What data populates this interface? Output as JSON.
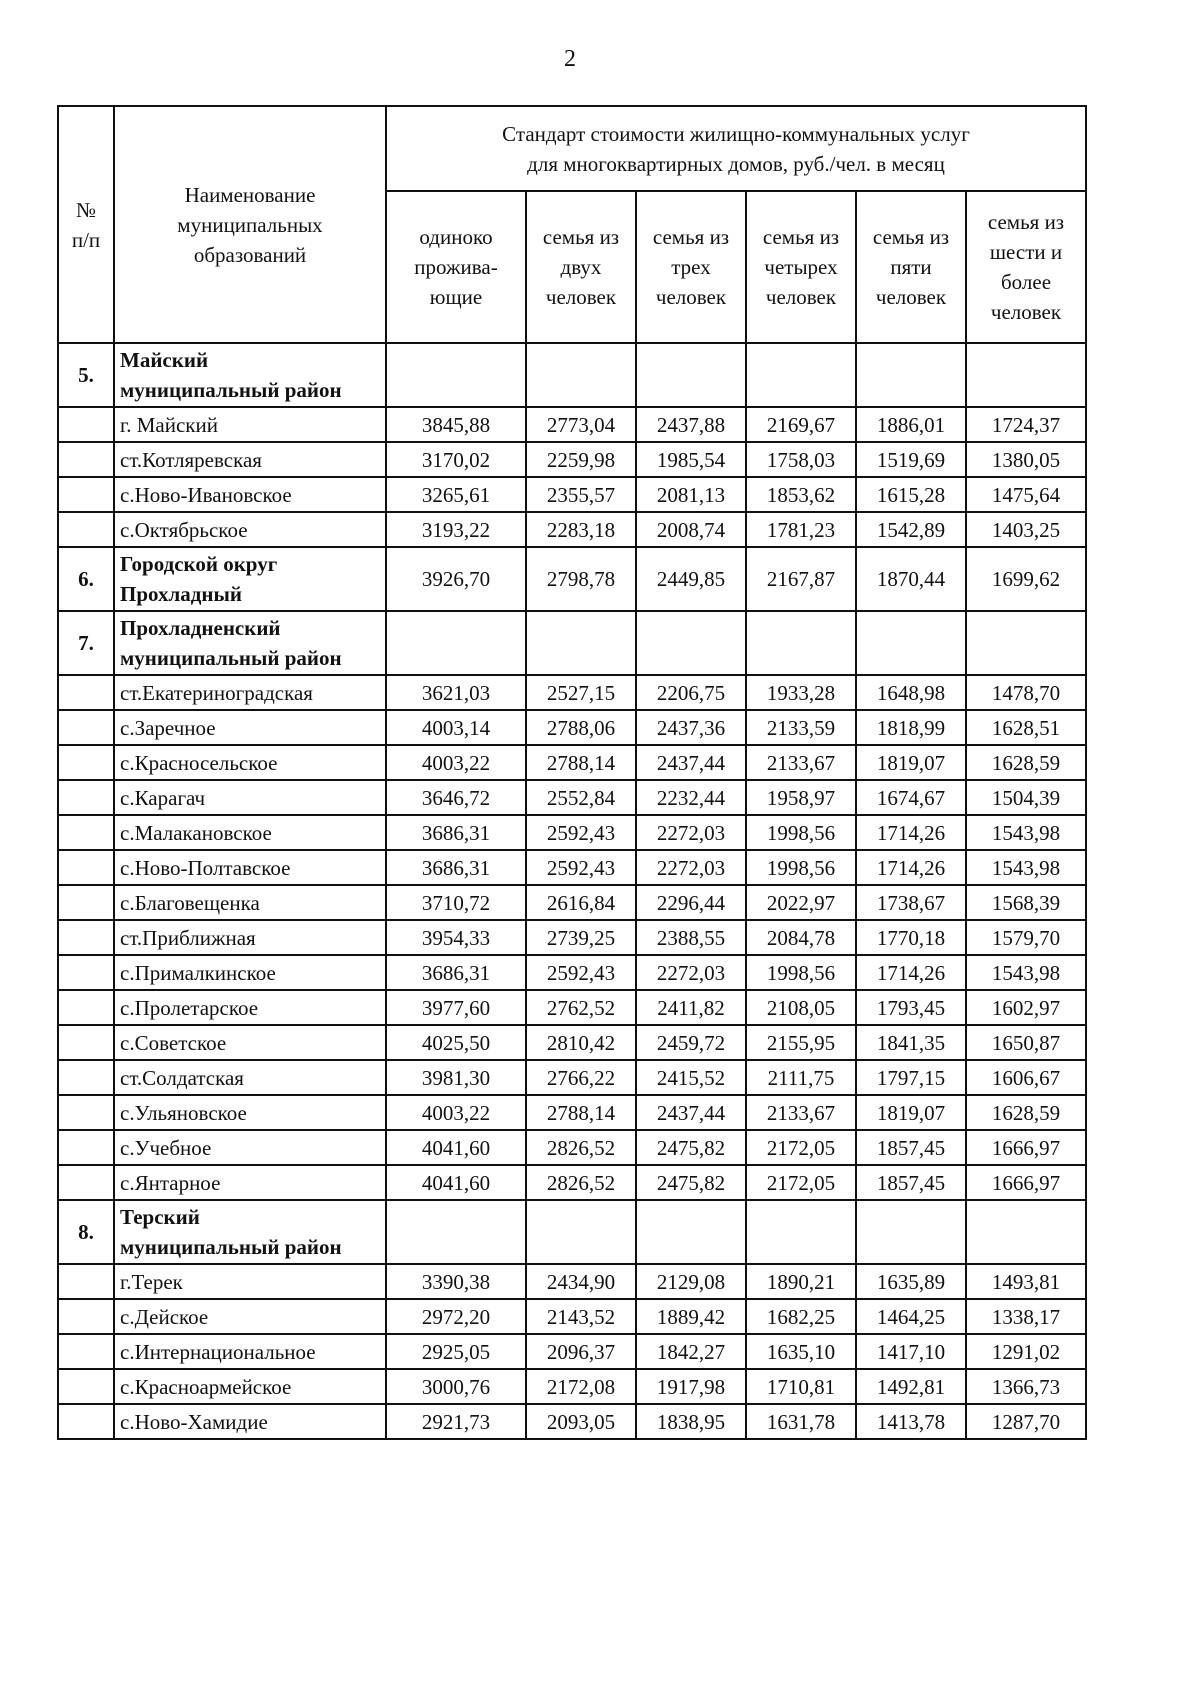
{
  "page_number": "2",
  "table": {
    "header": {
      "number": "№\nп/п",
      "name": "Наименование\nмуниципальных\nобразований",
      "group": "Стандарт стоимости жилищно-коммунальных услуг\nдля многоквартирных домов, руб./чел. в месяц",
      "columns": [
        "одиноко\nпрожива-\nющие",
        "семья из\nдвух\nчеловек",
        "семья из\nтрех\nчеловек",
        "семья из\nчетырех\nчеловек",
        "семья из\nпяти\nчеловек",
        "семья из\nшести и\nболее\nчеловек"
      ]
    },
    "rows": [
      {
        "number": "5.",
        "name": "Майский\nмуниципальный район",
        "values": []
      },
      {
        "name": "г. Майский",
        "values": [
          "3845,88",
          "2773,04",
          "2437,88",
          "2169,67",
          "1886,01",
          "1724,37"
        ]
      },
      {
        "name": "ст.Котляревская",
        "values": [
          "3170,02",
          "2259,98",
          "1985,54",
          "1758,03",
          "1519,69",
          "1380,05"
        ]
      },
      {
        "name": "с.Ново-Ивановское",
        "values": [
          "3265,61",
          "2355,57",
          "2081,13",
          "1853,62",
          "1615,28",
          "1475,64"
        ]
      },
      {
        "name": "с.Октябрьское",
        "values": [
          "3193,22",
          "2283,18",
          "2008,74",
          "1781,23",
          "1542,89",
          "1403,25"
        ]
      },
      {
        "number": "6.",
        "name": "Городской округ\nПрохладный",
        "values": [
          "3926,70",
          "2798,78",
          "2449,85",
          "2167,87",
          "1870,44",
          "1699,62"
        ]
      },
      {
        "number": "7.",
        "name": "Прохладненский\nмуниципальный район",
        "values": []
      },
      {
        "name": "ст.Екатериноградская",
        "values": [
          "3621,03",
          "2527,15",
          "2206,75",
          "1933,28",
          "1648,98",
          "1478,70"
        ]
      },
      {
        "name": "с.Заречное",
        "values": [
          "4003,14",
          "2788,06",
          "2437,36",
          "2133,59",
          "1818,99",
          "1628,51"
        ]
      },
      {
        "name": "с.Красносельское",
        "values": [
          "4003,22",
          "2788,14",
          "2437,44",
          "2133,67",
          "1819,07",
          "1628,59"
        ]
      },
      {
        "name": "с.Карагач",
        "values": [
          "3646,72",
          "2552,84",
          "2232,44",
          "1958,97",
          "1674,67",
          "1504,39"
        ]
      },
      {
        "name": "с.Малакановское",
        "values": [
          "3686,31",
          "2592,43",
          "2272,03",
          "1998,56",
          "1714,26",
          "1543,98"
        ]
      },
      {
        "name": "с.Ново-Полтавское",
        "values": [
          "3686,31",
          "2592,43",
          "2272,03",
          "1998,56",
          "1714,26",
          "1543,98"
        ]
      },
      {
        "name": "с.Благовещенка",
        "values": [
          "3710,72",
          "2616,84",
          "2296,44",
          "2022,97",
          "1738,67",
          "1568,39"
        ]
      },
      {
        "name": "ст.Приближная",
        "values": [
          "3954,33",
          "2739,25",
          "2388,55",
          "2084,78",
          "1770,18",
          "1579,70"
        ]
      },
      {
        "name": "с.Прималкинское",
        "values": [
          "3686,31",
          "2592,43",
          "2272,03",
          "1998,56",
          "1714,26",
          "1543,98"
        ]
      },
      {
        "name": "с.Пролетарское",
        "values": [
          "3977,60",
          "2762,52",
          "2411,82",
          "2108,05",
          "1793,45",
          "1602,97"
        ]
      },
      {
        "name": "с.Советское",
        "values": [
          "4025,50",
          "2810,42",
          "2459,72",
          "2155,95",
          "1841,35",
          "1650,87"
        ]
      },
      {
        "name": "ст.Солдатская",
        "values": [
          "3981,30",
          "2766,22",
          "2415,52",
          "2111,75",
          "1797,15",
          "1606,67"
        ]
      },
      {
        "name": "с.Ульяновское",
        "values": [
          "4003,22",
          "2788,14",
          "2437,44",
          "2133,67",
          "1819,07",
          "1628,59"
        ]
      },
      {
        "name": "с.Учебное",
        "values": [
          "4041,60",
          "2826,52",
          "2475,82",
          "2172,05",
          "1857,45",
          "1666,97"
        ]
      },
      {
        "name": "с.Янтарное",
        "values": [
          "4041,60",
          "2826,52",
          "2475,82",
          "2172,05",
          "1857,45",
          "1666,97"
        ]
      },
      {
        "number": "8.",
        "name": "Терский\nмуниципальный район",
        "values": []
      },
      {
        "name": "г.Терек",
        "values": [
          "3390,38",
          "2434,90",
          "2129,08",
          "1890,21",
          "1635,89",
          "1493,81"
        ]
      },
      {
        "name": "с.Дейское",
        "values": [
          "2972,20",
          "2143,52",
          "1889,42",
          "1682,25",
          "1464,25",
          "1338,17"
        ]
      },
      {
        "name": "с.Интернациональное",
        "values": [
          "2925,05",
          "2096,37",
          "1842,27",
          "1635,10",
          "1417,10",
          "1291,02"
        ]
      },
      {
        "name": "с.Красноармейское",
        "values": [
          "3000,76",
          "2172,08",
          "1917,98",
          "1710,81",
          "1492,81",
          "1366,73"
        ]
      },
      {
        "name": "с.Ново-Хамидие",
        "values": [
          "2921,73",
          "2093,05",
          "1838,95",
          "1631,78",
          "1413,78",
          "1287,70"
        ]
      }
    ]
  }
}
